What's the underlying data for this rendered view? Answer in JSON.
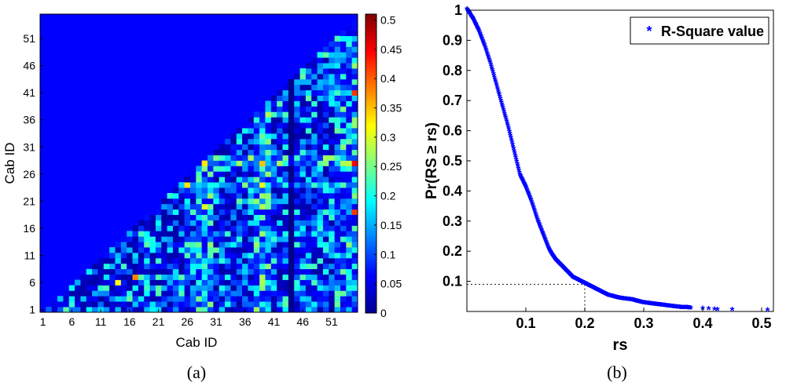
{
  "chart_data": [
    {
      "type": "heatmap",
      "panel_label": "(a)",
      "xlabel": "Cab ID",
      "ylabel": "Cab ID",
      "x_ticks": [
        "1",
        "6",
        "11",
        "16",
        "21",
        "26",
        "31",
        "36",
        "41",
        "46",
        "51"
      ],
      "y_ticks": [
        "1",
        "6",
        "11",
        "16",
        "21",
        "26",
        "31",
        "36",
        "41",
        "46",
        "51"
      ],
      "grid_size": 55,
      "colorbar": {
        "ticks": [
          "0",
          "0.05",
          "0.1",
          "0.15",
          "0.2",
          "0.25",
          "0.3",
          "0.35",
          "0.4",
          "0.45",
          "0.5"
        ],
        "range": [
          0,
          0.51
        ]
      },
      "structure": "lower-right triangle populated (cell shown where column index > row index); upper-left triangle is 0",
      "value_range": [
        0,
        0.5
      ],
      "notable_high_cells": [
        {
          "x": 29,
          "y": 28,
          "value": 0.33
        },
        {
          "x": 39,
          "y": 28,
          "value": 0.35
        },
        {
          "x": 29,
          "y": 20,
          "value": 0.3
        },
        {
          "x": 39,
          "y": 20,
          "value": 0.28
        },
        {
          "x": 26,
          "y": 24,
          "value": 0.33
        },
        {
          "x": 55,
          "y": 41,
          "value": 0.42
        },
        {
          "x": 55,
          "y": 28,
          "value": 0.45
        },
        {
          "x": 55,
          "y": 19,
          "value": 0.42
        },
        {
          "x": 17,
          "y": 7,
          "value": 0.38
        },
        {
          "x": 14,
          "y": 6,
          "value": 0.32
        }
      ]
    },
    {
      "type": "scatter",
      "panel_label": "(b)",
      "xlabel": "rs",
      "ylabel": "Pr(RS ≥ rs)",
      "xlim": [
        0,
        0.52
      ],
      "ylim": [
        0,
        1
      ],
      "x_ticks": [
        "0.1",
        "0.2",
        "0.3",
        "0.4",
        "0.5"
      ],
      "y_ticks": [
        "0.1",
        "0.2",
        "0.3",
        "0.4",
        "0.5",
        "0.6",
        "0.7",
        "0.8",
        "0.9",
        "1"
      ],
      "legend": {
        "label": "R-Square value",
        "marker": "*",
        "placement": "top-right"
      },
      "series_color": "#0000ff",
      "reference_point": {
        "x": 0.2,
        "y": 0.09
      },
      "curve": {
        "x": [
          0.0,
          0.01,
          0.02,
          0.03,
          0.04,
          0.05,
          0.06,
          0.07,
          0.08,
          0.09,
          0.1,
          0.11,
          0.12,
          0.13,
          0.14,
          0.15,
          0.16,
          0.17,
          0.18,
          0.19,
          0.2,
          0.22,
          0.24,
          0.26,
          0.28,
          0.3,
          0.32,
          0.34,
          0.36,
          0.38
        ],
        "y": [
          1.0,
          0.97,
          0.93,
          0.88,
          0.82,
          0.75,
          0.68,
          0.61,
          0.53,
          0.45,
          0.41,
          0.36,
          0.3,
          0.25,
          0.2,
          0.17,
          0.15,
          0.13,
          0.11,
          0.1,
          0.09,
          0.07,
          0.05,
          0.04,
          0.035,
          0.025,
          0.02,
          0.015,
          0.01,
          0.008
        ]
      },
      "tail_points": [
        {
          "x": 0.4,
          "y": 0.006
        },
        {
          "x": 0.41,
          "y": 0.005
        },
        {
          "x": 0.42,
          "y": 0.004
        },
        {
          "x": 0.425,
          "y": 0.003
        },
        {
          "x": 0.45,
          "y": 0.002
        },
        {
          "x": 0.51,
          "y": 0.001
        }
      ]
    }
  ]
}
